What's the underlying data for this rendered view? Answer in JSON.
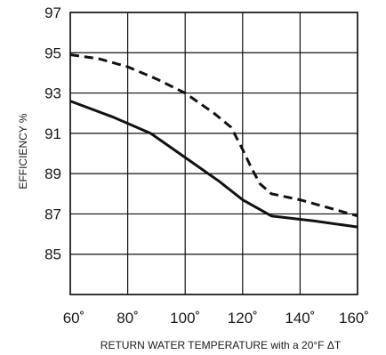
{
  "chart_data": {
    "type": "line",
    "xlabel": "RETURN WATER TEMPERATURE with a 20°F ΔT",
    "ylabel": "EFFICIENCY %",
    "xlim": [
      60,
      160
    ],
    "ylim": [
      83,
      97
    ],
    "x_ticks": [
      60,
      80,
      100,
      120,
      140,
      160
    ],
    "x_tick_labels": [
      "60˚",
      "80˚",
      "100˚",
      "120˚",
      "140˚",
      "160˚"
    ],
    "y_ticks": [
      85,
      87,
      89,
      91,
      93,
      95,
      97
    ],
    "y_tick_labels": [
      "85",
      "87",
      "89",
      "91",
      "93",
      "95",
      "97"
    ],
    "grid": true,
    "series": [
      {
        "style": "dashed",
        "color": "#111111",
        "x": [
          60,
          70,
          80,
          90,
          100,
          110,
          116,
          120,
          123,
          126,
          130,
          140,
          150,
          160
        ],
        "y": [
          94.9,
          94.7,
          94.3,
          93.7,
          93.0,
          92.0,
          91.3,
          90.2,
          89.3,
          88.5,
          88.0,
          87.7,
          87.3,
          86.9
        ]
      },
      {
        "style": "solid",
        "color": "#111111",
        "x": [
          60,
          75,
          88,
          100,
          112,
          120,
          130,
          145,
          160
        ],
        "y": [
          92.6,
          91.8,
          91.0,
          89.8,
          88.6,
          87.7,
          86.9,
          86.65,
          86.35
        ]
      }
    ]
  }
}
